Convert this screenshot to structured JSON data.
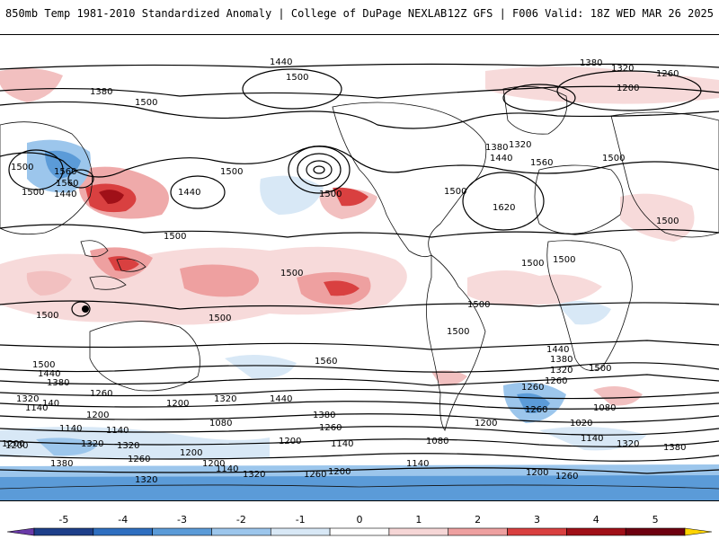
{
  "header": {
    "left_title": "850mb Temp 1981-2010 Standardized Anomaly | College of DuPage NEXLAB",
    "right_title": "12Z GFS | F006 Valid: 18Z WED MAR 26 2025"
  },
  "colorbar": {
    "ticks": [
      "-5",
      "-4",
      "-3",
      "-2",
      "-1",
      "0",
      "1",
      "2",
      "3",
      "4",
      "5"
    ],
    "colors": [
      "#6a3aa8",
      "#1e3f8a",
      "#2f6fc0",
      "#5b9bd8",
      "#9cc6ec",
      "#d8e8f6",
      "#ffffff",
      "#f6d6d6",
      "#eea0a0",
      "#d94040",
      "#a01018",
      "#6e0010",
      "#ffd400"
    ]
  },
  "map": {
    "ocean_color": "#ffffff",
    "contour_unit_labels": [
      "1440",
      "1500",
      "1380",
      "1320",
      "1260",
      "1200",
      "1380",
      "1500",
      "1560",
      "1500",
      "1440",
      "1560",
      "1500",
      "1440",
      "1500",
      "1380",
      "1320",
      "1560",
      "1440",
      "1500",
      "1620",
      "1500",
      "1500",
      "1500",
      "1500",
      "1500",
      "1500",
      "1500",
      "1500",
      "1500",
      "1500",
      "1560",
      "1500",
      "1440",
      "1380",
      "1320",
      "1260",
      "1500",
      "1500",
      "1440",
      "1380",
      "1320",
      "140",
      "1260",
      "1200",
      "1320",
      "1440",
      "1200",
      "1080",
      "1140",
      "1320",
      "1200",
      "1260",
      "1380",
      "1260",
      "1200",
      "1140",
      "1380",
      "1320",
      "1140",
      "1080",
      "1200",
      "1020",
      "1080",
      "1140",
      "1200",
      "1260",
      "1320",
      "1200",
      "1140",
      "1200",
      "1260",
      "1380",
      "1320",
      "1140",
      "1320",
      "1260",
      "1200",
      "1140",
      "1200",
      "1260"
    ]
  }
}
